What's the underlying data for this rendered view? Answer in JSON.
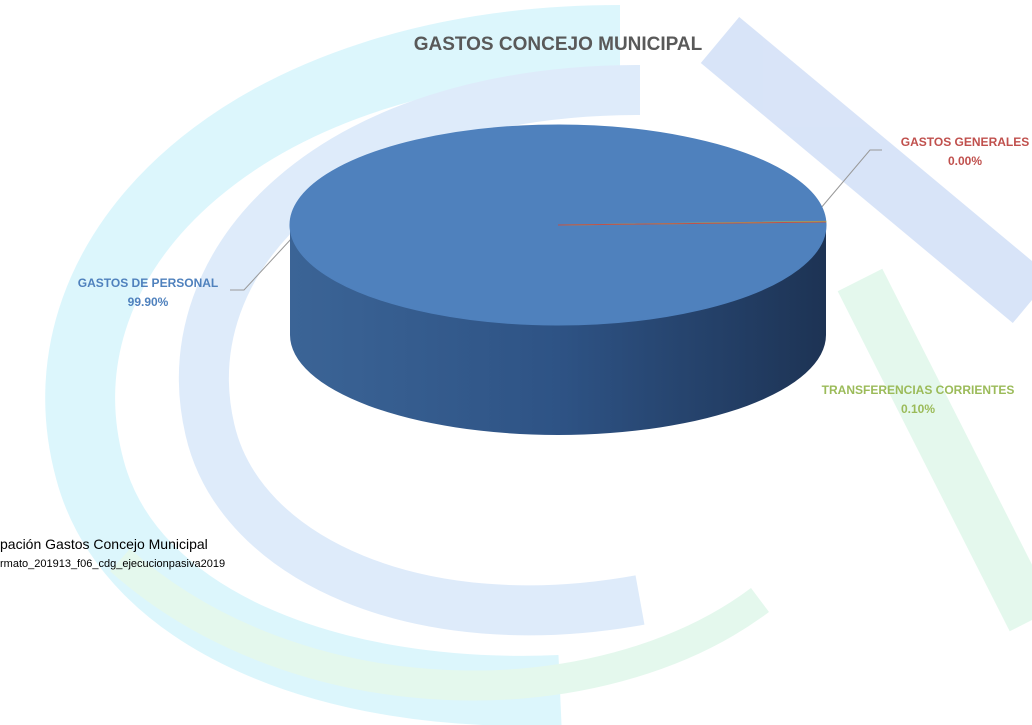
{
  "chart_data": {
    "type": "pie",
    "title": "GASTOS CONCEJO MUNICIPAL",
    "categories": [
      "GASTOS DE PERSONAL",
      "TRANSFERENCIAS CORRIENTES",
      "GASTOS GENERALES"
    ],
    "values": [
      99.9,
      0.1,
      0.0
    ],
    "value_labels": [
      "99.90%",
      "0.10%",
      "0.00%"
    ],
    "colors": [
      "#4f81bd",
      "#9bbb59",
      "#c0504d"
    ]
  },
  "caption": {
    "title": "pación Gastos Concejo Municipal",
    "source": "rmato_201913_f06_cdg_ejecucionpasiva2019"
  }
}
